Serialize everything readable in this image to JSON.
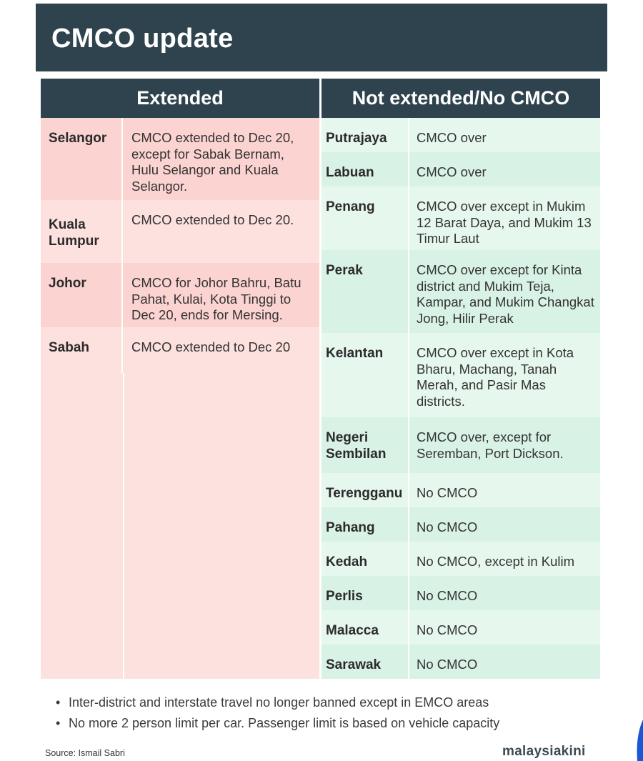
{
  "title": "CMCO update",
  "headers": {
    "extended": "Extended",
    "not_extended": "Not extended/No CMCO"
  },
  "extended": [
    {
      "state": "Selangor",
      "desc": "CMCO extended to Dec 20, except for Sabak Bernam, Hulu Selangor and Kuala Selangor."
    },
    {
      "state": "Kuala Lumpur",
      "desc": "CMCO extended to Dec 20."
    },
    {
      "state": "Johor",
      "desc": "CMCO for Johor Bahru, Batu Pahat, Kulai, Kota Tinggi to Dec 20, ends for Mersing."
    },
    {
      "state": "Sabah",
      "desc": "CMCO extended to Dec 20"
    }
  ],
  "not_extended": [
    {
      "state": "Putrajaya",
      "desc": "CMCO over"
    },
    {
      "state": "Labuan",
      "desc": "CMCO over"
    },
    {
      "state": "Penang",
      "desc": "CMCO over except in Mukim 12 Barat Daya, and Mukim 13 Timur Laut"
    },
    {
      "state": "Perak",
      "desc": "CMCO over except for Kinta district and Mukim Teja, Kampar, and Mukim Changkat Jong, Hilir Perak"
    },
    {
      "state": "Kelantan",
      "desc": "CMCO over except in Kota Bharu, Machang, Tanah Merah, and Pasir Mas districts."
    },
    {
      "state": "Negeri Sembilan",
      "desc": "CMCO over, except for Seremban, Port Dickson."
    },
    {
      "state": "Terengganu",
      "desc": "No CMCO"
    },
    {
      "state": "Pahang",
      "desc": "No CMCO"
    },
    {
      "state": "Kedah",
      "desc": "No CMCO, except in Kulim"
    },
    {
      "state": "Perlis",
      "desc": "No CMCO"
    },
    {
      "state": "Malacca",
      "desc": "No CMCO"
    },
    {
      "state": "Sarawak",
      "desc": "No CMCO"
    }
  ],
  "notes": [
    "Inter-district and interstate travel no longer banned except in EMCO areas",
    "No more 2 person limit per car. Passenger limit is based on vehicle capacity"
  ],
  "bullet": "•",
  "source": "Source: Ismail Sabri",
  "brand": "malaysiakini",
  "colors": {
    "header_bg": "#2e434d",
    "extended_bg": "#fde1df",
    "not_extended_bg": "#e6f7ee"
  }
}
